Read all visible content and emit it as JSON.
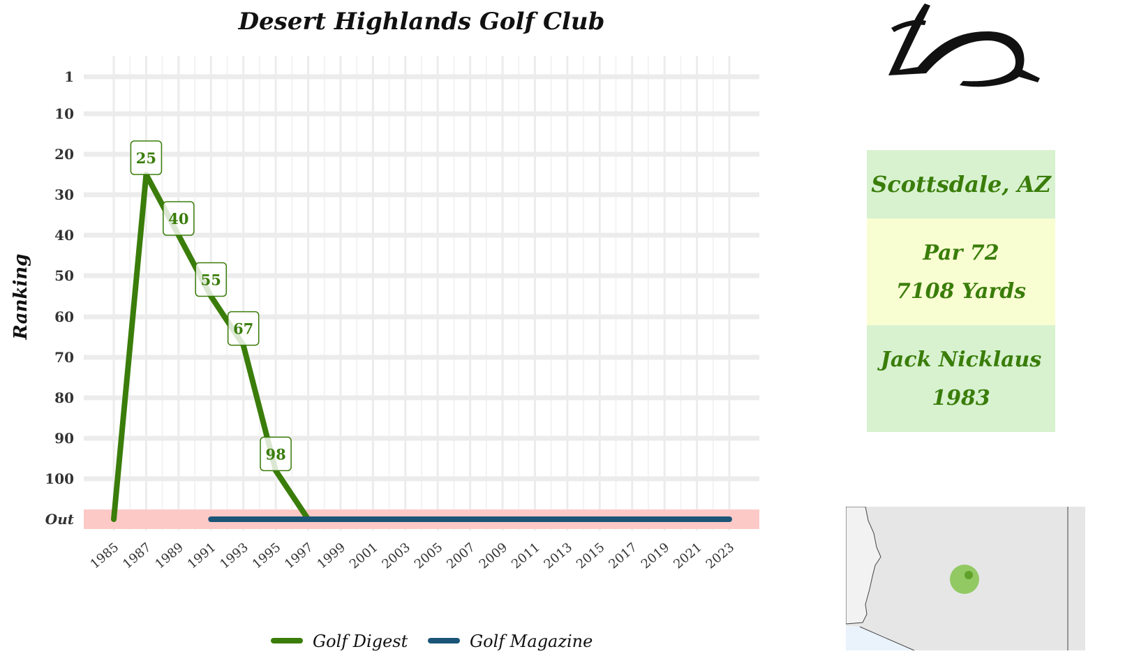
{
  "chart_data": {
    "type": "line",
    "title": "Desert Highlands Golf Club",
    "xlabel": "",
    "ylabel": "Ranking",
    "y_tick_labels": [
      "1",
      "10",
      "20",
      "30",
      "40",
      "50",
      "60",
      "70",
      "80",
      "90",
      "100",
      "Out"
    ],
    "y_tick_values": [
      1,
      10,
      20,
      30,
      40,
      50,
      60,
      70,
      80,
      90,
      100,
      110
    ],
    "y_reversed": true,
    "ylim": [
      1,
      110
    ],
    "out_band_value": 110,
    "x_tick_labels": [
      "1985",
      "1987",
      "1989",
      "1991",
      "1993",
      "1995",
      "1997",
      "1999",
      "2001",
      "2003",
      "2005",
      "2007",
      "2009",
      "2011",
      "2013",
      "2015",
      "2017",
      "2019",
      "2021",
      "2023"
    ],
    "xlim": [
      1985,
      2023
    ],
    "grid": true,
    "legend_position": "bottom",
    "series": [
      {
        "name": "Golf Digest",
        "color": "#3a7d0a",
        "x": [
          1985,
          1987,
          1989,
          1991,
          1993,
          1995,
          1997
        ],
        "y": [
          110,
          25,
          40,
          55,
          67,
          98,
          110
        ],
        "labels": [
          "",
          "25",
          "40",
          "55",
          "67",
          "98",
          ""
        ]
      },
      {
        "name": "Golf Magazine",
        "color": "#1a5577",
        "x": [
          1991,
          2023
        ],
        "y": [
          110,
          110
        ],
        "labels": [
          "",
          ""
        ]
      }
    ]
  },
  "course_info": {
    "location": "Scottsdale, AZ",
    "par": "Par 72",
    "yards": "7108 Yards",
    "architect": "Jack Nicklaus",
    "year": "1983"
  },
  "colors": {
    "accent_green": "#3a7d0a",
    "navy": "#1a5577",
    "out_band": "#fcc9c7",
    "box_green": "#d8f2d0",
    "box_yellow": "#f9fdd2",
    "map_dot": "#7dc242"
  },
  "icons": {
    "logo": "desert-highlands-logo-icon",
    "map": "arizona-locator-map-icon"
  }
}
